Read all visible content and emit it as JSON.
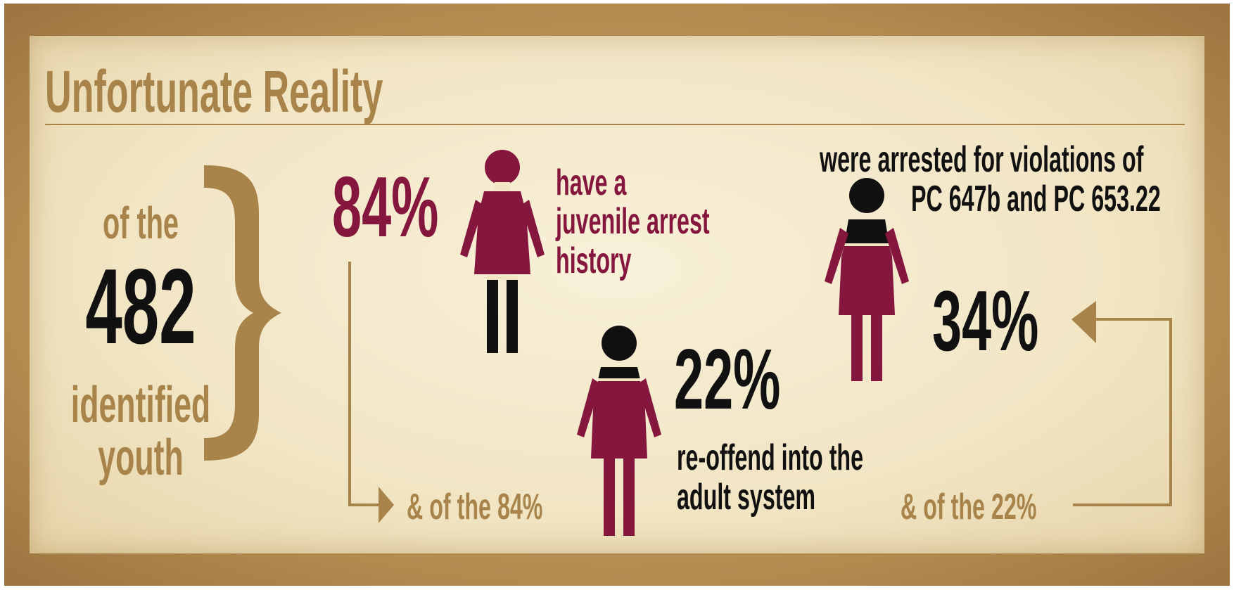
{
  "title": "Unfortunate Reality",
  "cohort": {
    "prefix": "of the",
    "count": "482",
    "line1": "identified",
    "line2": "youth"
  },
  "stats": [
    {
      "value": "84%",
      "percent": 84,
      "caption": [
        "have a",
        "juvenile arrest",
        "history"
      ]
    },
    {
      "value": "22%",
      "percent": 22,
      "caption": [
        "re-offend into the",
        "adult system"
      ]
    },
    {
      "value": "34%",
      "percent": 34,
      "caption": [
        "were arrested for violations of",
        "PC 647b and PC 653.22"
      ]
    }
  ],
  "connectors": {
    "of_84": "& of the 84%",
    "of_22": "& of the 22%"
  },
  "colors": {
    "gold": "#a8844b",
    "wine": "#85173f",
    "black": "#111111",
    "paper": "#f4ead0"
  },
  "icons": [
    "female-figure-icon",
    "brace-icon",
    "arrow-right-icon",
    "arrow-left-icon"
  ]
}
